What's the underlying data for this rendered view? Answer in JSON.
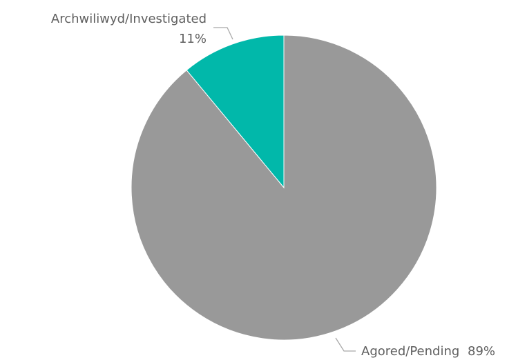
{
  "chart_data": {
    "type": "pie",
    "start_angle_deg": 0,
    "direction": "clockwise",
    "slices": [
      {
        "label": "Agored/Pending",
        "value": 89,
        "value_label": "89%",
        "color": "#999999"
      },
      {
        "label": "Archwiliwyd/Investigated",
        "value": 11,
        "value_label": "11%",
        "color": "#01b8aa"
      }
    ]
  }
}
